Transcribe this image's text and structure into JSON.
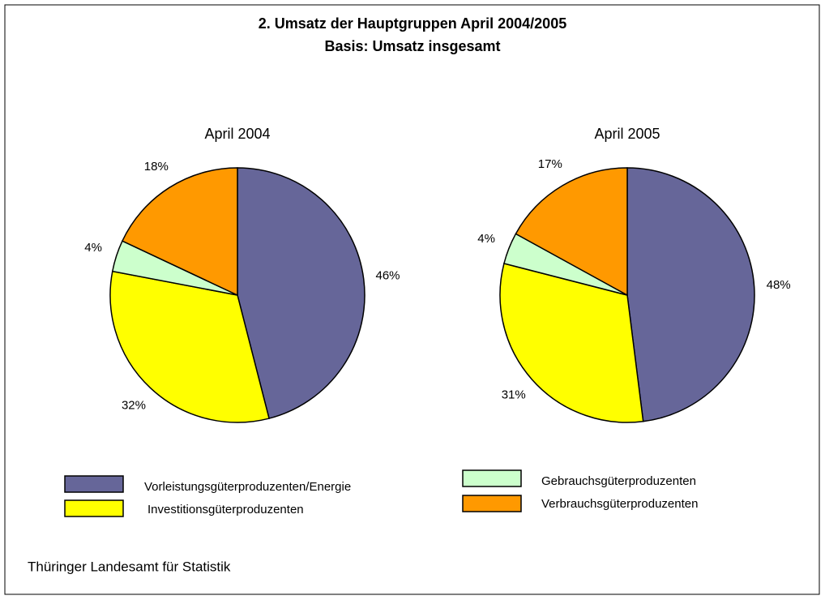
{
  "title": "2. Umsatz der Hauptgruppen April 2004/2005",
  "subtitle": "Basis: Umsatz insgesamt",
  "source": "Thüringer Landesamt für Statistik",
  "chart_data": [
    {
      "type": "pie",
      "title": "April 2004",
      "categories": [
        "Vorleistungsgüterproduzenten/Energie",
        "Investitionsgüterproduzenten",
        "Gebrauchsgüterproduzenten",
        "Verbrauchsgüterproduzenten"
      ],
      "values": [
        46,
        32,
        4,
        18
      ],
      "value_labels": [
        "46%",
        "32%",
        "4%",
        "18%"
      ],
      "colors": [
        "#666699",
        "#ffff00",
        "#ccffcc",
        "#ff9900"
      ]
    },
    {
      "type": "pie",
      "title": "April 2005",
      "categories": [
        "Vorleistungsgüterproduzenten/Energie",
        "Investitionsgüterproduzenten",
        "Gebrauchsgüterproduzenten",
        "Verbrauchsgüterproduzenten"
      ],
      "values": [
        48,
        31,
        4,
        17
      ],
      "value_labels": [
        "48%",
        "31%",
        "4%",
        "17%"
      ],
      "colors": [
        "#666699",
        "#ffff00",
        "#ccffcc",
        "#ff9900"
      ]
    }
  ]
}
